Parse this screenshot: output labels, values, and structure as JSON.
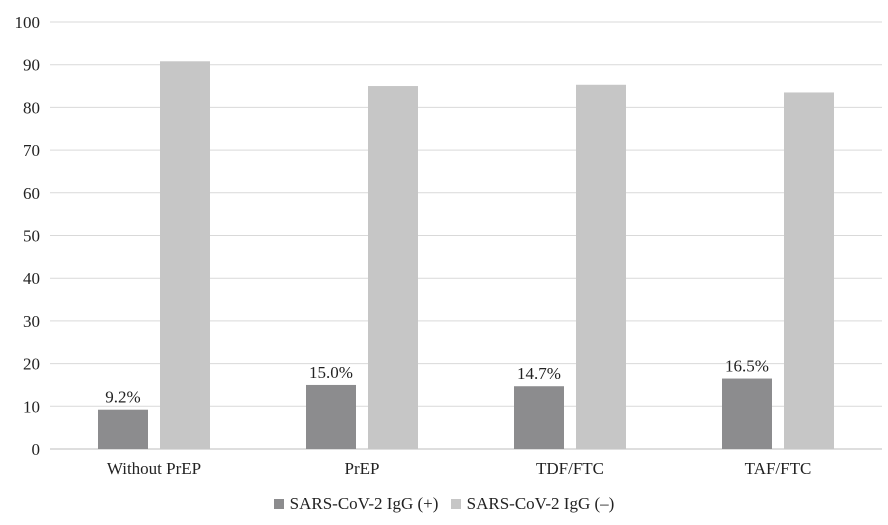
{
  "chart_data": {
    "type": "bar",
    "categories": [
      "Without PrEP",
      "PrEP",
      "TDF/FTC",
      "TAF/FTC"
    ],
    "series": [
      {
        "name": "SARS-CoV-2 IgG (+)",
        "values": [
          9.2,
          15.0,
          14.7,
          16.5
        ],
        "labels": [
          "9.2%",
          "15.0%",
          "14.7%",
          "16.5%"
        ],
        "color": "#8c8c8e"
      },
      {
        "name": "SARS-CoV-2 IgG (–)",
        "values": [
          90.8,
          85.0,
          85.3,
          83.5
        ],
        "labels": [],
        "color": "#c6c6c6"
      }
    ],
    "ylim": [
      0,
      100
    ],
    "yticks": [
      0,
      10,
      20,
      30,
      40,
      50,
      60,
      70,
      80,
      90,
      100
    ],
    "grid": true,
    "legend": "bottom",
    "title": "",
    "xlabel": "",
    "ylabel": ""
  }
}
